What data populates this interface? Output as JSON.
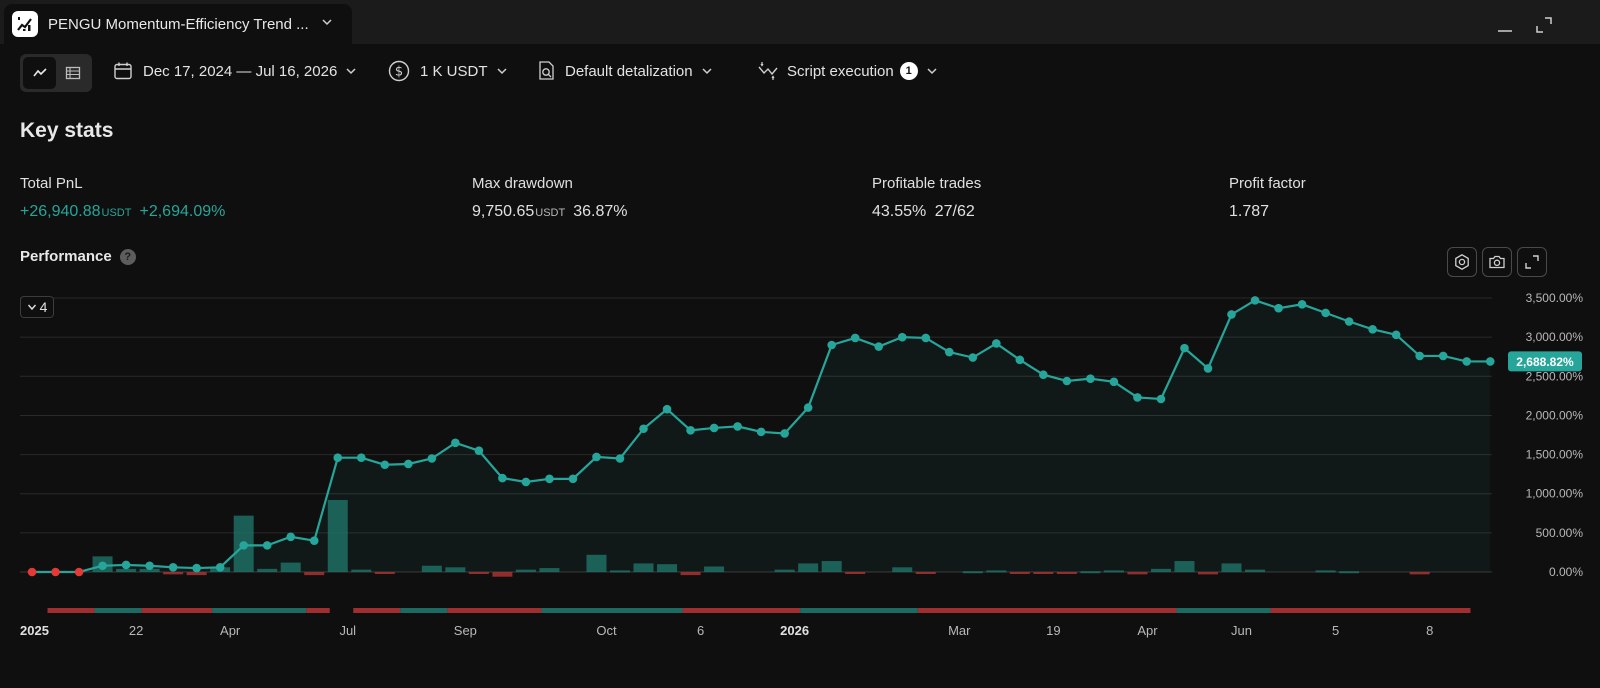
{
  "window": {
    "tab_title": "PENGU Momentum-Efficiency Trend ...",
    "icons": {
      "logo": "chart-logo-icon",
      "minimize": "minimize-icon",
      "maximize": "maximize-icon"
    }
  },
  "toolbar": {
    "date_range": "Dec 17, 2024 — Jul 16, 2026",
    "capital": "1 K USDT",
    "detalization": "Default detalization",
    "script_execution": "Script execution",
    "script_execution_count": "1"
  },
  "key_stats": {
    "title": "Key stats",
    "total_pnl": {
      "label": "Total PnL",
      "value": "+26,940.88",
      "unit": "USDT",
      "percent": "+2,694.09%"
    },
    "max_drawdown": {
      "label": "Max drawdown",
      "value": "9,750.65",
      "unit": "USDT",
      "percent": "36.87%"
    },
    "profitable_trades": {
      "label": "Profitable trades",
      "percent": "43.55%",
      "ratio": "27/62"
    },
    "profit_factor": {
      "label": "Profit factor",
      "value": "1.787"
    }
  },
  "performance": {
    "title": "Performance",
    "help": "?",
    "collapse_label": "4"
  },
  "chart_data": {
    "type": "line",
    "y_ticks": [
      "3,500.00%",
      "3,000.00%",
      "2,500.00%",
      "2,000.00%",
      "1,500.00%",
      "1,000.00%",
      "500.00%",
      "0.00%"
    ],
    "y_range": [
      -100,
      3650
    ],
    "last_value_label": "2,688.82%",
    "x_ticks": [
      {
        "label": "2025",
        "bold": true,
        "i": 0
      },
      {
        "label": "22",
        "bold": false,
        "i": 4
      },
      {
        "label": "Apr",
        "bold": false,
        "i": 8
      },
      {
        "label": "Jul",
        "bold": false,
        "i": 13
      },
      {
        "label": "Sep",
        "bold": false,
        "i": 18
      },
      {
        "label": "Oct",
        "bold": false,
        "i": 24
      },
      {
        "label": "6",
        "bold": false,
        "i": 28
      },
      {
        "label": "2026",
        "bold": true,
        "i": 32
      },
      {
        "label": "Mar",
        "bold": false,
        "i": 39
      },
      {
        "label": "19",
        "bold": false,
        "i": 43
      },
      {
        "label": "Apr",
        "bold": false,
        "i": 47
      },
      {
        "label": "Jun",
        "bold": false,
        "i": 51
      },
      {
        "label": "5",
        "bold": false,
        "i": 55
      },
      {
        "label": "8",
        "bold": false,
        "i": 59
      }
    ],
    "equity": [
      0,
      0,
      0,
      80,
      90,
      80,
      60,
      50,
      60,
      340,
      340,
      450,
      400,
      1460,
      1460,
      1370,
      1380,
      1450,
      1650,
      1550,
      1200,
      1150,
      1190,
      1190,
      1470,
      1450,
      1830,
      2080,
      1810,
      1840,
      1860,
      1790,
      1770,
      2100,
      2900,
      2990,
      2880,
      3000,
      2990,
      2810,
      2740,
      2920,
      2710,
      2520,
      2440,
      2470,
      2430,
      2230,
      2210,
      2860,
      2600,
      3290,
      3470,
      3370,
      3420,
      3310,
      3200,
      3100,
      3030,
      2760,
      2760,
      2690,
      2690
    ],
    "bars": [
      0,
      0,
      0,
      200,
      40,
      40,
      -30,
      -40,
      60,
      720,
      40,
      120,
      -40,
      920,
      30,
      -20,
      0,
      80,
      60,
      -20,
      -60,
      30,
      50,
      0,
      220,
      20,
      110,
      100,
      -40,
      70,
      0,
      0,
      30,
      110,
      140,
      -20,
      0,
      60,
      -20,
      0,
      10,
      20,
      -10,
      -20,
      -20,
      10,
      20,
      -30,
      40,
      140,
      -30,
      110,
      30,
      0,
      0,
      20,
      10,
      0,
      0,
      -30,
      0,
      0,
      0
    ],
    "trade_strip": [
      {
        "from": 1,
        "to": 3,
        "side": "loss"
      },
      {
        "from": 3,
        "to": 5,
        "side": "win"
      },
      {
        "from": 5,
        "to": 8,
        "side": "loss"
      },
      {
        "from": 8,
        "to": 12,
        "side": "win"
      },
      {
        "from": 12,
        "to": 13,
        "side": "loss"
      },
      {
        "from": 14,
        "to": 16,
        "side": "loss"
      },
      {
        "from": 16,
        "to": 18,
        "side": "win"
      },
      {
        "from": 18,
        "to": 22,
        "side": "loss"
      },
      {
        "from": 22,
        "to": 28,
        "side": "win"
      },
      {
        "from": 28,
        "to": 33,
        "side": "loss"
      },
      {
        "from": 33,
        "to": 38,
        "side": "win"
      },
      {
        "from": 38,
        "to": 49,
        "side": "loss"
      },
      {
        "from": 49,
        "to": 53,
        "side": "win"
      },
      {
        "from": 53,
        "to": 61.5,
        "side": "loss"
      }
    ],
    "colors": {
      "line": "#26a69a",
      "loss": "#e53935",
      "grid": "#2a2a2a",
      "bar": "#1f7a6e",
      "loss_bar": "#a83232"
    }
  }
}
